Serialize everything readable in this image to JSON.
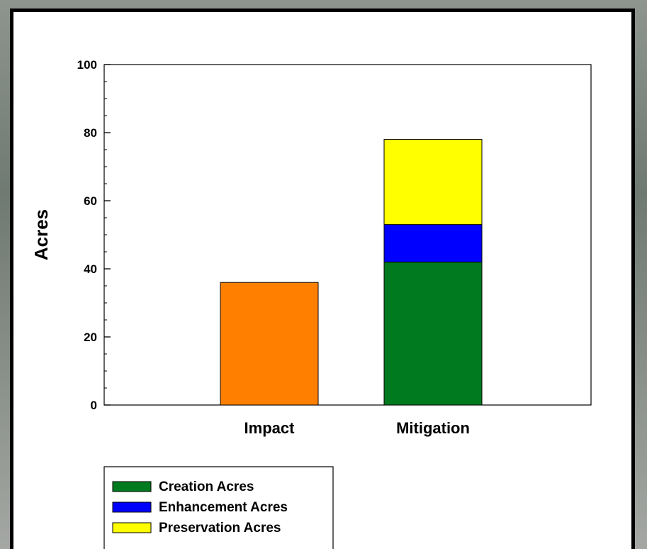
{
  "chart_data": {
    "type": "bar",
    "stacked": true,
    "categories": [
      "Impact",
      "Mitigation"
    ],
    "ylabel": "Acres",
    "xlabel": "",
    "ylim": [
      0,
      100
    ],
    "yticks": [
      0,
      20,
      40,
      60,
      80,
      100
    ],
    "grid": false,
    "legend_position": "bottom-left",
    "impact_bar": {
      "category": "Impact",
      "value": 36,
      "color": "#ff8000"
    },
    "series": [
      {
        "name": "Creation Acres",
        "category": "Mitigation",
        "value": 42,
        "color": "#007a1e"
      },
      {
        "name": "Enhancement Acres",
        "category": "Mitigation",
        "value": 11,
        "color": "#0000ff"
      },
      {
        "name": "Preservation Acres",
        "category": "Mitigation",
        "value": 25,
        "color": "#ffff00"
      }
    ]
  }
}
